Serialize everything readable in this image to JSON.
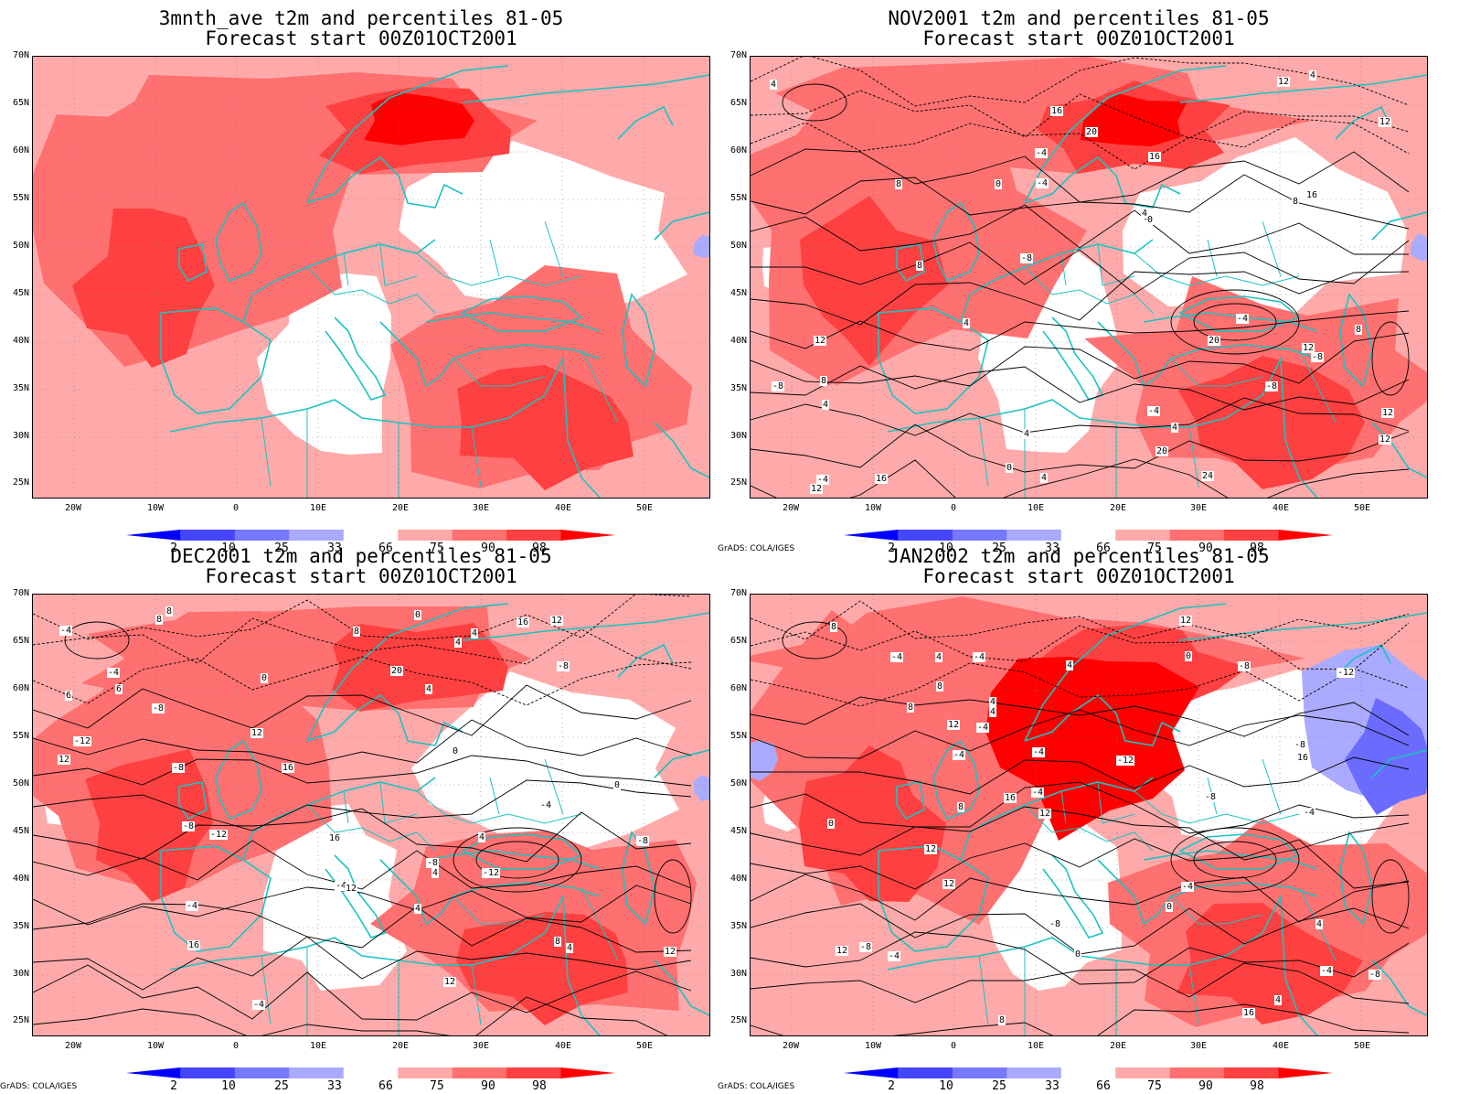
{
  "panels": [
    {
      "title1": "3mnth_ave t2m and percentiles 81-05",
      "title2": "Forecast start 00Z01OCT2001",
      "credit": "",
      "contours": false,
      "blue_east": "low",
      "deep_north": "scandinavia"
    },
    {
      "title1": "NOV2001 t2m and percentiles 81-05",
      "title2": "Forecast start 00Z01OCT2001",
      "credit": "GrADS: COLA/IGES",
      "contours": true,
      "blue_east": "low",
      "deep_north": "scandinavia",
      "contour_labels": [
        "-4",
        "-8",
        "4",
        "4",
        "-8",
        "-4",
        "4",
        "0",
        "-8",
        "-4",
        "4",
        "0",
        "-4",
        "-8",
        "4",
        "8",
        "8",
        "12",
        "0",
        "4",
        "12",
        "16",
        "8",
        "4",
        "12",
        "8",
        "16",
        "12",
        "4",
        "8",
        "12",
        "12",
        "20",
        "16",
        "20",
        "16",
        "24",
        "20",
        "12",
        "-4"
      ]
    },
    {
      "title1": "DEC2001 t2m and percentiles 81-05",
      "title2": "Forecast start 00Z01OCT2001",
      "credit": "GrADS: COLA/IGES",
      "contours": true,
      "blue_east": "low",
      "deep_north": "none",
      "contour_labels": [
        "-8",
        "-4",
        "-4",
        "-8",
        "0",
        "4",
        "4",
        "-12",
        "-8",
        "-12",
        "-8",
        "-4",
        "0",
        "-8",
        "-12",
        "-4",
        "4",
        "6",
        "12",
        "0",
        "4",
        "12",
        "8",
        "4",
        "8",
        "4",
        "0",
        "-4",
        "-4",
        "8",
        "12",
        "16",
        "16",
        "16",
        "12",
        "8",
        "6",
        "16",
        "12",
        "20",
        "12",
        "-8",
        "4"
      ]
    },
    {
      "title1": "JAN2002 t2m and percentiles 81-05",
      "title2": "Forecast start 00Z01OCT2001",
      "credit": "GrADS: COLA/IGES",
      "contours": true,
      "blue_east": "high",
      "deep_north": "north_europe",
      "contour_labels": [
        "-8",
        "-4",
        "-4",
        "-8",
        "-4",
        "4",
        "-12",
        "-8",
        "-4",
        "0",
        "-12",
        "-8",
        "-4",
        "16",
        "4",
        "8",
        "-4",
        "12",
        "-4",
        "8",
        "4",
        "4",
        "12",
        "4",
        "0",
        "-4",
        "8",
        "-8",
        "0",
        "-4",
        "4",
        "0",
        "8",
        "-4",
        "12",
        "12",
        "16",
        "16",
        "12",
        "12",
        "-8",
        "8"
      ]
    }
  ],
  "axes": {
    "y_labels": [
      "70N",
      "65N",
      "60N",
      "55N",
      "50N",
      "45N",
      "40N",
      "35N",
      "30N",
      "25N"
    ],
    "x_labels": [
      "20W",
      "10W",
      "0",
      "10E",
      "20E",
      "30E",
      "40E",
      "50E"
    ]
  },
  "colorbar": {
    "labels": [
      "2",
      "10",
      "25",
      "33",
      "66",
      "75",
      "90",
      "98"
    ],
    "colors": [
      "#0000ff",
      "#4646ff",
      "#7878ff",
      "#aaaaff",
      "#ffffff",
      "#ffaaaa",
      "#ff7070",
      "#ff4040",
      "#ff0000"
    ]
  },
  "colors": {
    "coast": "#1cc2c2",
    "red_light": "#ffaaaa",
    "red_mid": "#ff7070",
    "red_strong": "#ff4040",
    "red_deep": "#ff0000",
    "blue_light": "#aaaaff",
    "blue_mid": "#6b6bff"
  }
}
